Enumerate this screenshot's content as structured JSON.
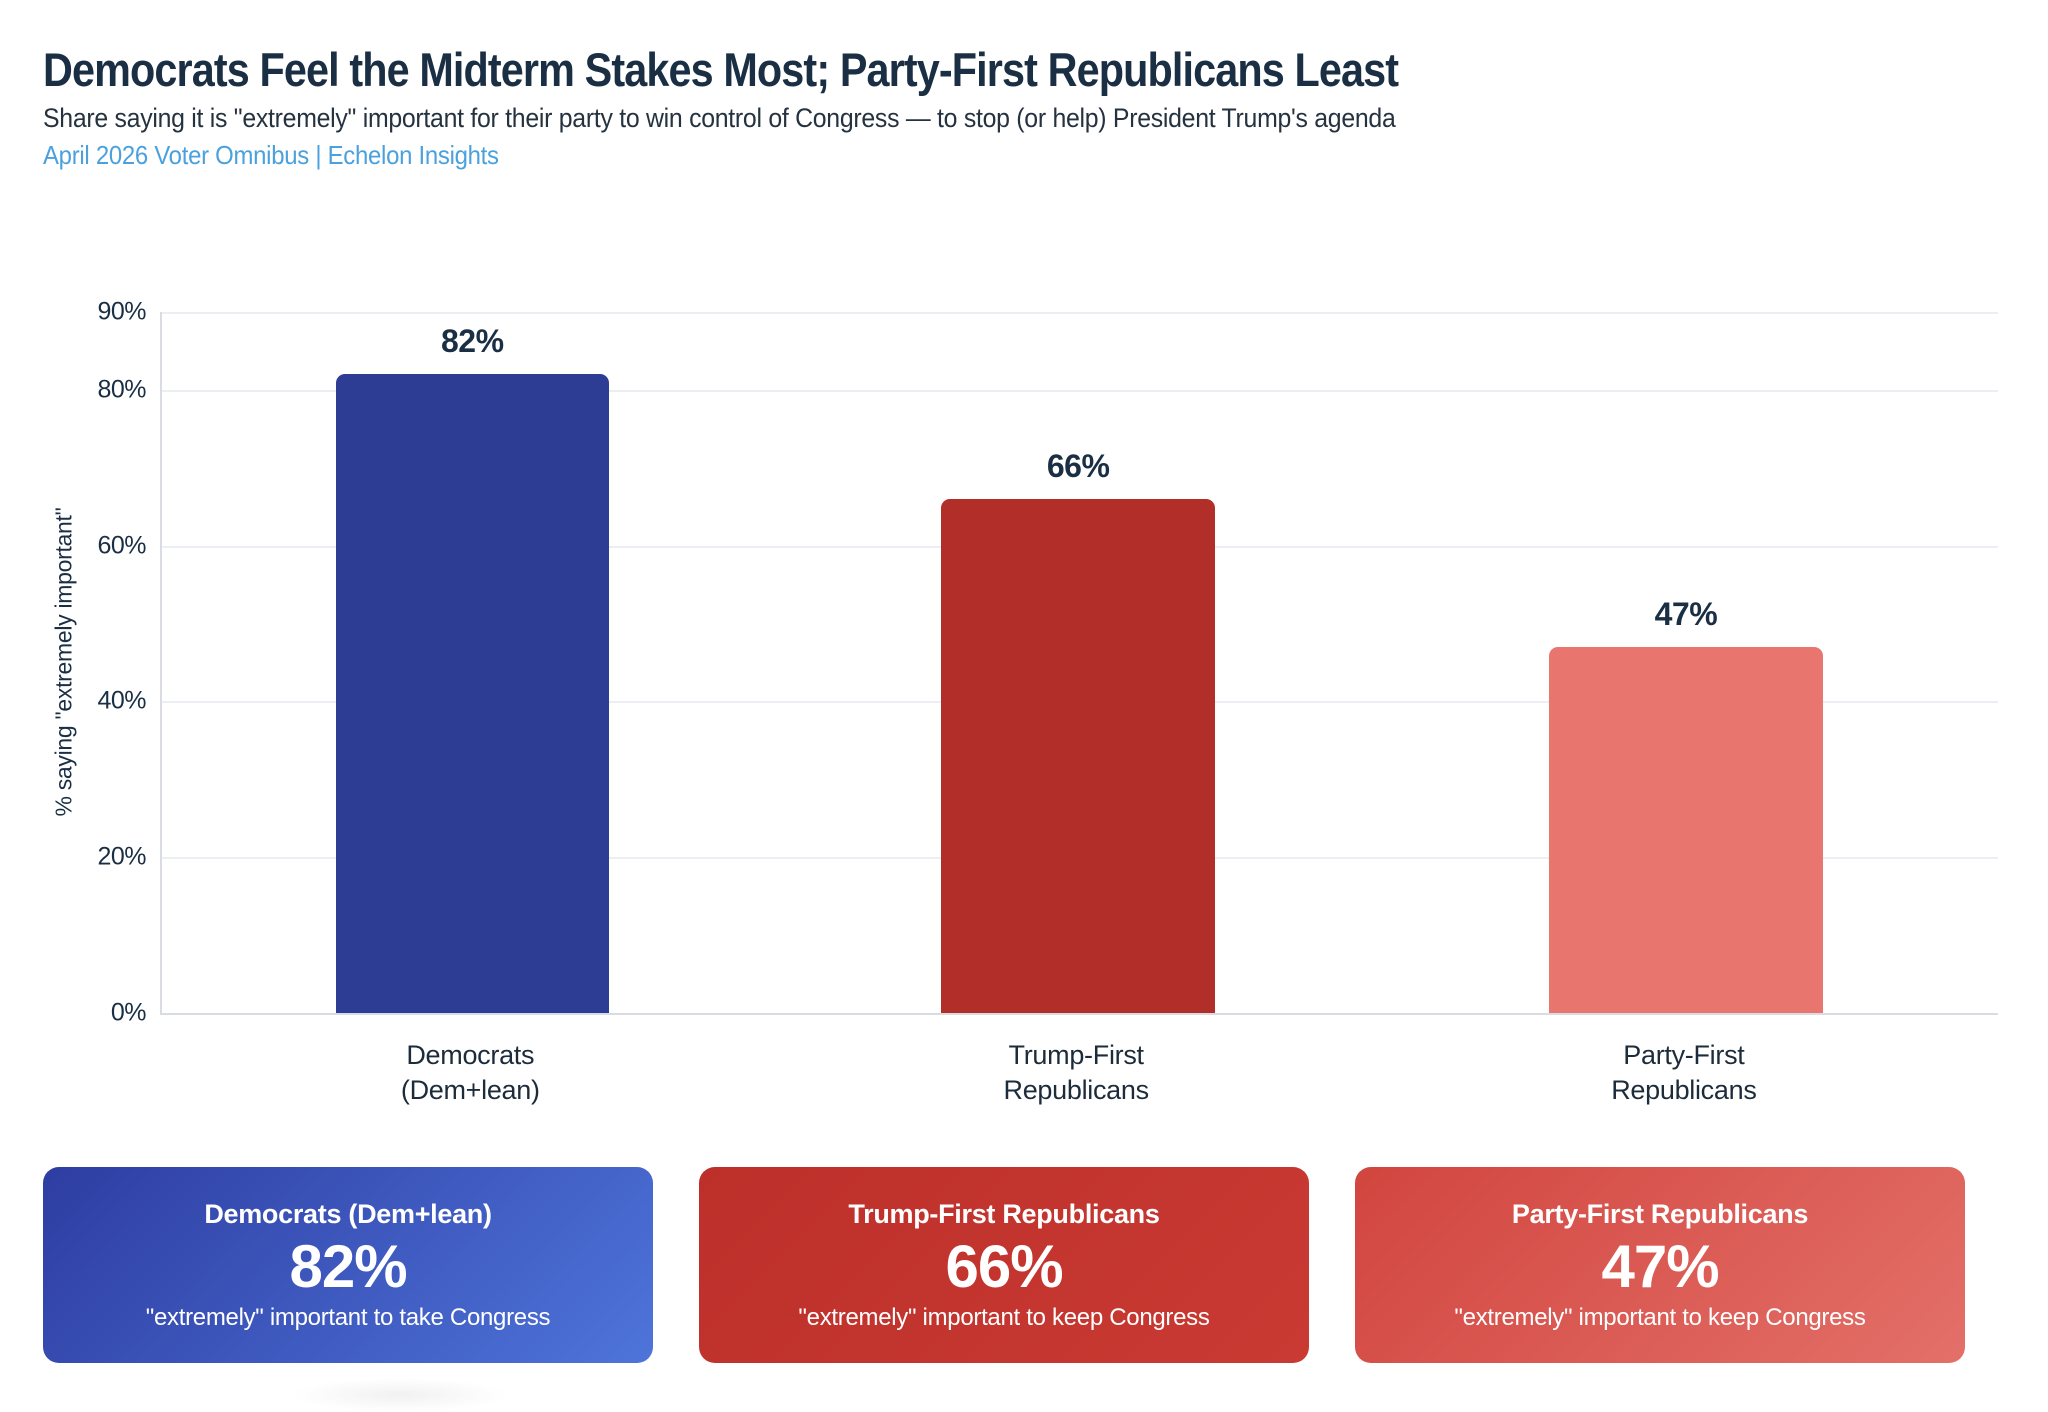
{
  "header": {
    "title": "Democrats Feel the Midterm Stakes Most; Party-First Republicans Least",
    "subtitle": "Share saying it is \"extremely\" important for their party to win control of Congress — to stop (or help) President Trump's agenda",
    "source": "April 2026 Voter Omnibus | Echelon Insights"
  },
  "colors": {
    "title_text": "#1b2f44",
    "subtitle_text": "#25323f",
    "source_text": "#4ba1dd",
    "axis_text": "#1b2f44",
    "gridline": "#eceef3",
    "axis_line": "#d9dde3"
  },
  "chart_data": {
    "type": "bar",
    "title": "Democrats Feel the Midterm Stakes Most; Party-First Republicans Least",
    "ylabel": "% saying \"extremely important\"",
    "xlabel": "",
    "ylim": [
      0,
      90
    ],
    "yticks": [
      0,
      20,
      40,
      60,
      80,
      90
    ],
    "grid": true,
    "legend_position": "none",
    "categories": [
      "Democrats (Dem+lean)",
      "Trump-First Republicans",
      "Party-First Republicans"
    ],
    "category_lines": [
      [
        "Democrats",
        "(Dem+lean)"
      ],
      [
        "Trump-First",
        "Republicans"
      ],
      [
        "Party-First",
        "Republicans"
      ]
    ],
    "values": [
      82,
      66,
      47
    ],
    "bar_labels": [
      "82%",
      "66%",
      "47%"
    ],
    "bar_colors": [
      "#2e3d94",
      "#b22e28",
      "#e8756e"
    ],
    "bar_centers_pct": [
      16.9,
      49.9,
      83.0
    ]
  },
  "cards": [
    {
      "title": "Democrats (Dem+lean)",
      "value": "82%",
      "caption": "\"extremely\" important to take Congress",
      "gradient_from": "#2e3da2",
      "gradient_to": "#4e74da"
    },
    {
      "title": "Trump-First Republicans",
      "value": "66%",
      "caption": "\"extremely\" important to keep Congress",
      "gradient_from": "#bd2f2a",
      "gradient_to": "#c93a33"
    },
    {
      "title": "Party-First Republicans",
      "value": "47%",
      "caption": "\"extremely\" important to keep Congress",
      "gradient_from": "#d2453f",
      "gradient_to": "#e37069"
    }
  ]
}
